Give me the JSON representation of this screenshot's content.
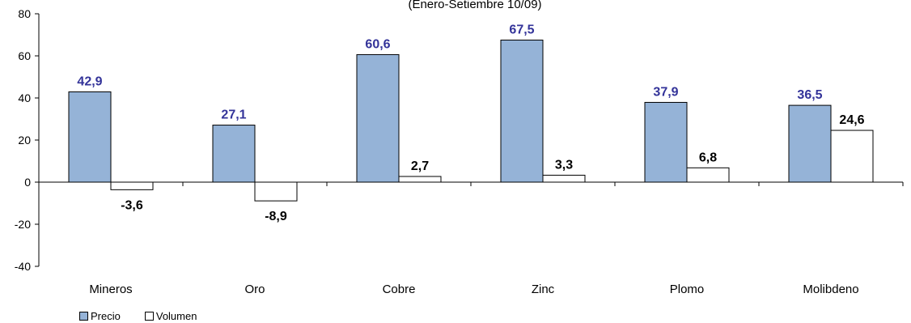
{
  "chart_data": {
    "type": "bar",
    "subtitle": "(Enero-Setiembre 10/09)",
    "categories": [
      "Mineros",
      "Oro",
      "Cobre",
      "Zinc",
      "Plomo",
      "Molibdeno"
    ],
    "series": [
      {
        "name": "Precio",
        "values": [
          42.9,
          27.1,
          60.6,
          67.5,
          37.9,
          36.5
        ],
        "labels": [
          "42,9",
          "27,1",
          "60,6",
          "67,5",
          "37,9",
          "36,5"
        ],
        "color": "#95B3D7",
        "label_color": "#333399"
      },
      {
        "name": "Volumen",
        "values": [
          -3.6,
          -8.9,
          2.7,
          3.3,
          6.8,
          24.6
        ],
        "labels": [
          "-3,6",
          "-8,9",
          "2,7",
          "3,3",
          "6,8",
          "24,6"
        ],
        "color": "#FFFFFF",
        "label_color": "#000000"
      }
    ],
    "ylim": [
      -40,
      80
    ],
    "yticks": [
      -40,
      -20,
      0,
      20,
      40,
      60,
      80
    ],
    "grid": false,
    "legend_position": "bottom-left"
  }
}
